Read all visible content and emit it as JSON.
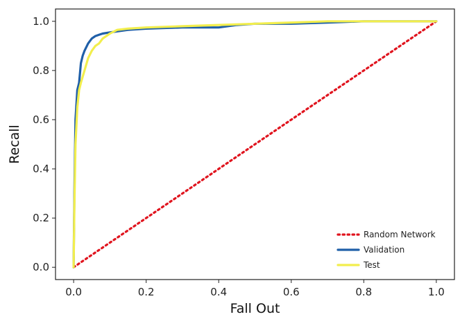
{
  "chart_data": {
    "type": "line",
    "xlabel": "Fall Out",
    "ylabel": "Recall",
    "xlim": [
      -0.05,
      1.05
    ],
    "ylim": [
      -0.05,
      1.05
    ],
    "x_ticks": [
      "0.0",
      "0.2",
      "0.4",
      "0.6",
      "0.8",
      "1.0"
    ],
    "y_ticks": [
      "0.0",
      "0.2",
      "0.4",
      "0.6",
      "0.8",
      "1.0"
    ],
    "grid": false,
    "legend_position": "bottom-right",
    "series": [
      {
        "name": "Random Network",
        "color": "#e0141e",
        "style": "dotted",
        "x": [
          0,
          1
        ],
        "y": [
          0,
          1
        ]
      },
      {
        "name": "Validation",
        "color": "#1f5fa8",
        "style": "solid",
        "x": [
          0,
          0.002,
          0.005,
          0.01,
          0.015,
          0.02,
          0.025,
          0.03,
          0.04,
          0.05,
          0.06,
          0.07,
          0.08,
          0.1,
          0.15,
          0.2,
          0.3,
          0.4,
          0.45,
          0.5,
          0.6,
          0.7,
          0.8,
          0.9,
          1.0
        ],
        "y": [
          0,
          0.3,
          0.6,
          0.72,
          0.75,
          0.83,
          0.86,
          0.88,
          0.91,
          0.93,
          0.94,
          0.945,
          0.95,
          0.955,
          0.965,
          0.97,
          0.975,
          0.975,
          0.985,
          0.99,
          0.99,
          0.995,
          1.0,
          1.0,
          1.0
        ]
      },
      {
        "name": "Test",
        "color": "#f2ee4d",
        "style": "solid",
        "x": [
          0,
          0.002,
          0.005,
          0.01,
          0.015,
          0.02,
          0.03,
          0.04,
          0.05,
          0.06,
          0.07,
          0.08,
          0.1,
          0.12,
          0.15,
          0.2,
          0.3,
          0.4,
          0.5,
          0.6,
          0.7,
          0.8,
          0.9,
          1.0
        ],
        "y": [
          0,
          0.25,
          0.5,
          0.65,
          0.72,
          0.75,
          0.8,
          0.85,
          0.88,
          0.9,
          0.91,
          0.93,
          0.95,
          0.965,
          0.97,
          0.975,
          0.98,
          0.985,
          0.99,
          0.995,
          1.0,
          1.0,
          1.0,
          1.0
        ]
      }
    ]
  }
}
